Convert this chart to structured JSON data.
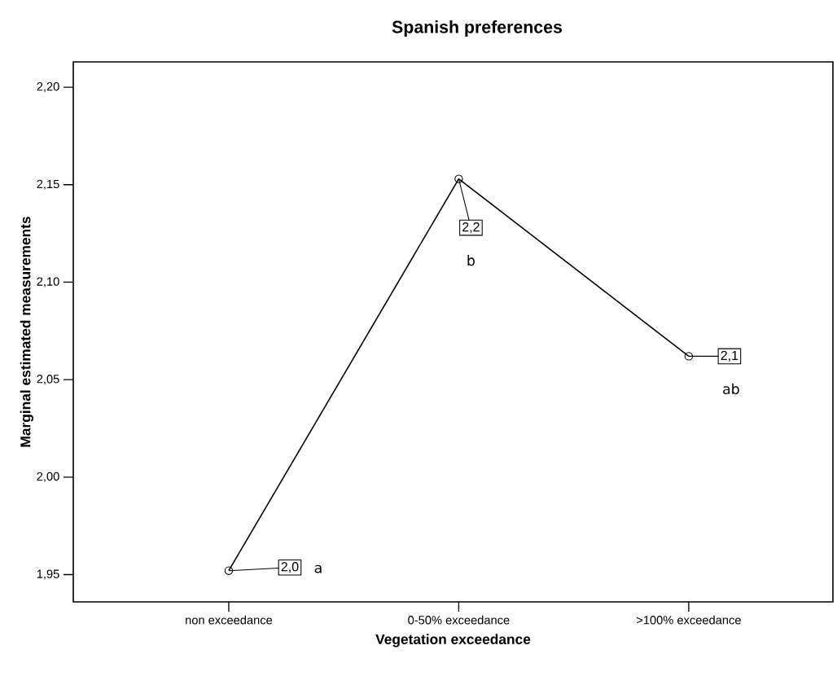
{
  "chart_data": {
    "type": "line",
    "title": "Spanish preferences",
    "xlabel": "Vegetation exceedance",
    "ylabel": "Marginal estimated measurements",
    "categories": [
      "non exceedance",
      "0-50% exceedance",
      ">100% exceedance"
    ],
    "values": [
      1.952,
      2.153,
      2.062
    ],
    "value_labels": [
      "2,0",
      "2,2",
      "2,1"
    ],
    "color": "#000000",
    "marker": "circle",
    "line_style": "solid",
    "ylim": [
      1.936,
      2.213
    ],
    "yticks": [
      {
        "value": 1.95,
        "label": "1,95"
      },
      {
        "value": 2.0,
        "label": "2,00"
      },
      {
        "value": 2.05,
        "label": "2,05"
      },
      {
        "value": 2.1,
        "label": "2,10"
      },
      {
        "value": 2.15,
        "label": "2,15"
      },
      {
        "value": 2.2,
        "label": "2,20"
      }
    ],
    "annotations": [
      "a",
      "b",
      "ab"
    ]
  }
}
